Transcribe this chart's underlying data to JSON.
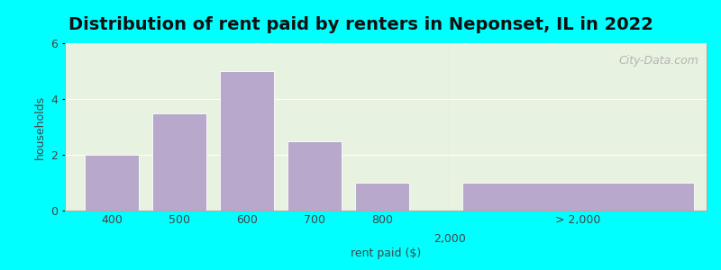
{
  "title": "Distribution of rent paid by renters in Neponset, IL in 2022",
  "xlabel": "rent paid ($)",
  "ylabel": "households",
  "bar_color": "#b8a8cc",
  "bg_color": "#00ffff",
  "plot_bg_color": "#e8f2e0",
  "ylim": [
    0,
    6
  ],
  "yticks": [
    0,
    2,
    4,
    6
  ],
  "bars": [
    {
      "label": "400",
      "value": 2
    },
    {
      "label": "500",
      "value": 3.5
    },
    {
      "label": "600",
      "value": 5
    },
    {
      "label": "700",
      "value": 2.5
    },
    {
      "label": "800",
      "value": 1
    }
  ],
  "wide_bar_value": 1,
  "wide_bar_label": "> 2,000",
  "mid_label": "2,000",
  "watermark": "City-Data.com",
  "title_fontsize": 14,
  "axis_label_fontsize": 9,
  "tick_fontsize": 9
}
